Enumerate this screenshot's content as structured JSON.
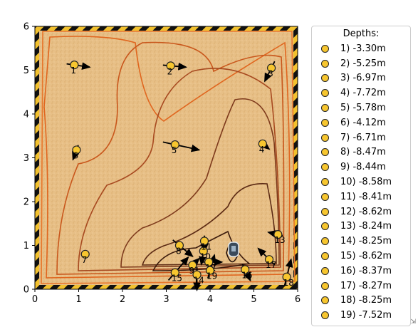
{
  "chart_data": {
    "type": "scatter",
    "title": "",
    "xlabel": "",
    "ylabel": "",
    "xlim": [
      0,
      6
    ],
    "ylim": [
      0,
      6
    ],
    "x_ticks": [
      "0",
      "1",
      "2",
      "3",
      "4",
      "5",
      "6"
    ],
    "y_ticks": [
      "0",
      "1",
      "2",
      "3",
      "4",
      "5",
      "6"
    ],
    "background": "sand texture with hazard-stripe border",
    "contours": "depth contour lines, orange (shallow) to dark brown (deep)",
    "legend_title": "Depths:",
    "legend_placement": "outside-right",
    "marker_color": "#f7c62f",
    "arrow_color": "#000000",
    "points": [
      {
        "id": "1",
        "x": 0.9,
        "y": 5.12,
        "depth": "1) -3.30m",
        "dx": 0.35,
        "dy": -0.05
      },
      {
        "id": "2",
        "x": 3.1,
        "y": 5.1,
        "depth": "2) -5.25m",
        "dx": 0.35,
        "dy": -0.03
      },
      {
        "id": "3",
        "x": 5.4,
        "y": 5.05,
        "depth": "3) -6.97m",
        "dx": -0.15,
        "dy": -0.3
      },
      {
        "id": "4",
        "x": 5.2,
        "y": 3.32,
        "depth": "4) -7.72m",
        "dx": 0.15,
        "dy": -0.12
      },
      {
        "id": "5",
        "x": 3.2,
        "y": 3.3,
        "depth": "5) -5.78m",
        "dx": 0.55,
        "dy": -0.12
      },
      {
        "id": "6",
        "x": 0.95,
        "y": 3.18,
        "depth": "6) -4.12m",
        "dx": -0.08,
        "dy": -0.22
      },
      {
        "id": "7",
        "x": 1.15,
        "y": 0.8,
        "depth": "7) -6.71m",
        "dx": 0.0,
        "dy": 0.0
      },
      {
        "id": "8",
        "x": 3.3,
        "y": 1.0,
        "depth": "8) -8.47m",
        "dx": 0.3,
        "dy": -0.25
      },
      {
        "id": "9",
        "x": 3.6,
        "y": 0.55,
        "depth": "9) -8.44m",
        "dx": 0.15,
        "dy": 0.15
      },
      {
        "id": "10",
        "x": 3.85,
        "y": 0.87,
        "depth": "10) -8.58m",
        "dx": -0.05,
        "dy": -0.3
      },
      {
        "id": "11",
        "x": 3.87,
        "y": 1.1,
        "depth": "11) -8.41m",
        "dx": 0.0,
        "dy": -0.25
      },
      {
        "id": "12",
        "x": 3.97,
        "y": 0.62,
        "depth": "12) -8.62m",
        "dx": 0.3,
        "dy": 0.0
      },
      {
        "id": "13",
        "x": 5.55,
        "y": 1.25,
        "depth": "13) -8.24m",
        "dx": -0.22,
        "dy": 0.05
      },
      {
        "id": "14",
        "x": 3.7,
        "y": 0.33,
        "depth": "14) -8.25m",
        "dx": 0.0,
        "dy": -0.35
      },
      {
        "id": "15",
        "x": 3.2,
        "y": 0.38,
        "depth": "15) -8.62m",
        "dx": 0.3,
        "dy": 0.35
      },
      {
        "id": "16",
        "x": 4.8,
        "y": 0.45,
        "depth": "16) -8.37m",
        "dx": 0.12,
        "dy": -0.25
      },
      {
        "id": "17",
        "x": 5.35,
        "y": 0.68,
        "depth": "17) -8.27m",
        "dx": -0.25,
        "dy": 0.25
      },
      {
        "id": "18",
        "x": 5.75,
        "y": 0.28,
        "depth": "18) -8.25m",
        "dx": 0.1,
        "dy": 0.4
      },
      {
        "id": "19",
        "x": 4.0,
        "y": 0.43,
        "depth": "19) -7.52m",
        "dx": 0.1,
        "dy": 0.35
      }
    ]
  },
  "window": {
    "resize_grip": "⇲"
  }
}
